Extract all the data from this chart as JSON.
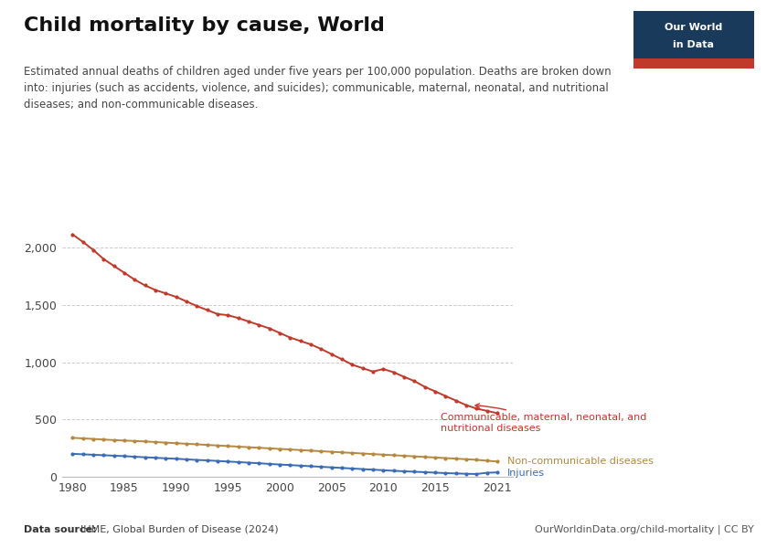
{
  "title": "Child mortality by cause, World",
  "subtitle": "Estimated annual deaths of children aged under five years per 100,000 population. Deaths are broken down\ninto: injuries (such as accidents, violence, and suicides); communicable, maternal, neonatal, and nutritional\ndiseases; and non-communicable diseases.",
  "datasource_bold": "Data source: ",
  "datasource_normal": "IHME, Global Burden of Disease (2024)",
  "url": "OurWorldinData.org/child-mortality | CC BY",
  "background_color": "#ffffff",
  "years": [
    1980,
    1981,
    1982,
    1983,
    1984,
    1985,
    1986,
    1987,
    1988,
    1989,
    1990,
    1991,
    1992,
    1993,
    1994,
    1995,
    1996,
    1997,
    1998,
    1999,
    2000,
    2001,
    2002,
    2003,
    2004,
    2005,
    2006,
    2007,
    2008,
    2009,
    2010,
    2011,
    2012,
    2013,
    2014,
    2015,
    2016,
    2017,
    2018,
    2019,
    2020,
    2021
  ],
  "communicable": [
    2115,
    2050,
    1980,
    1900,
    1840,
    1780,
    1720,
    1670,
    1630,
    1600,
    1570,
    1530,
    1490,
    1455,
    1420,
    1410,
    1385,
    1355,
    1325,
    1295,
    1255,
    1215,
    1185,
    1155,
    1115,
    1070,
    1025,
    978,
    948,
    918,
    940,
    912,
    872,
    835,
    785,
    745,
    705,
    665,
    625,
    595,
    575,
    555
  ],
  "non_communicable": [
    340,
    335,
    330,
    325,
    320,
    316,
    312,
    308,
    303,
    298,
    293,
    288,
    283,
    278,
    273,
    268,
    263,
    258,
    253,
    248,
    243,
    238,
    233,
    228,
    223,
    218,
    213,
    208,
    203,
    198,
    193,
    188,
    183,
    178,
    173,
    168,
    163,
    158,
    153,
    148,
    140,
    133
  ],
  "injuries": [
    200,
    196,
    192,
    188,
    184,
    180,
    175,
    170,
    166,
    161,
    157,
    152,
    147,
    143,
    138,
    133,
    128,
    123,
    118,
    112,
    107,
    102,
    97,
    92,
    87,
    82,
    77,
    72,
    67,
    62,
    57,
    52,
    48,
    44,
    40,
    36,
    32,
    29,
    26,
    24,
    35,
    38
  ],
  "communicable_color": "#c0392b",
  "non_communicable_color": "#b5883e",
  "injuries_color": "#3a6bb5",
  "communicable_label": "Communicable, maternal, neonatal, and\nnutritional diseases",
  "non_communicable_label": "Non-communicable diseases",
  "injuries_label": "Injuries",
  "ylim": [
    0,
    2200
  ],
  "yticks": [
    0,
    500,
    1000,
    1500,
    2000
  ],
  "xticks": [
    1980,
    1985,
    1990,
    1995,
    2000,
    2005,
    2010,
    2015,
    2021
  ],
  "owid_box_color": "#1a3a5c",
  "owid_red": "#c0392b"
}
